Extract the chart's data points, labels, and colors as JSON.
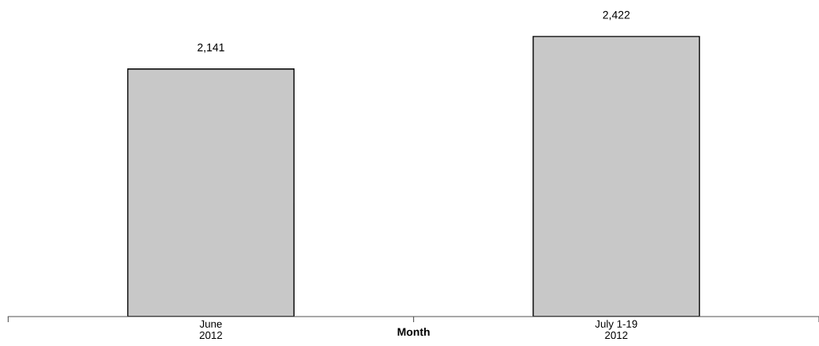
{
  "chart_data": {
    "type": "bar",
    "xlabel": "Month",
    "categories": [
      "June\n2012",
      "July 1-19\n2012"
    ],
    "values": [
      2141,
      2422
    ],
    "color": "#c8c8c8",
    "value_labels": [
      "2,141",
      "2,422"
    ],
    "grid": false,
    "legend": false
  }
}
